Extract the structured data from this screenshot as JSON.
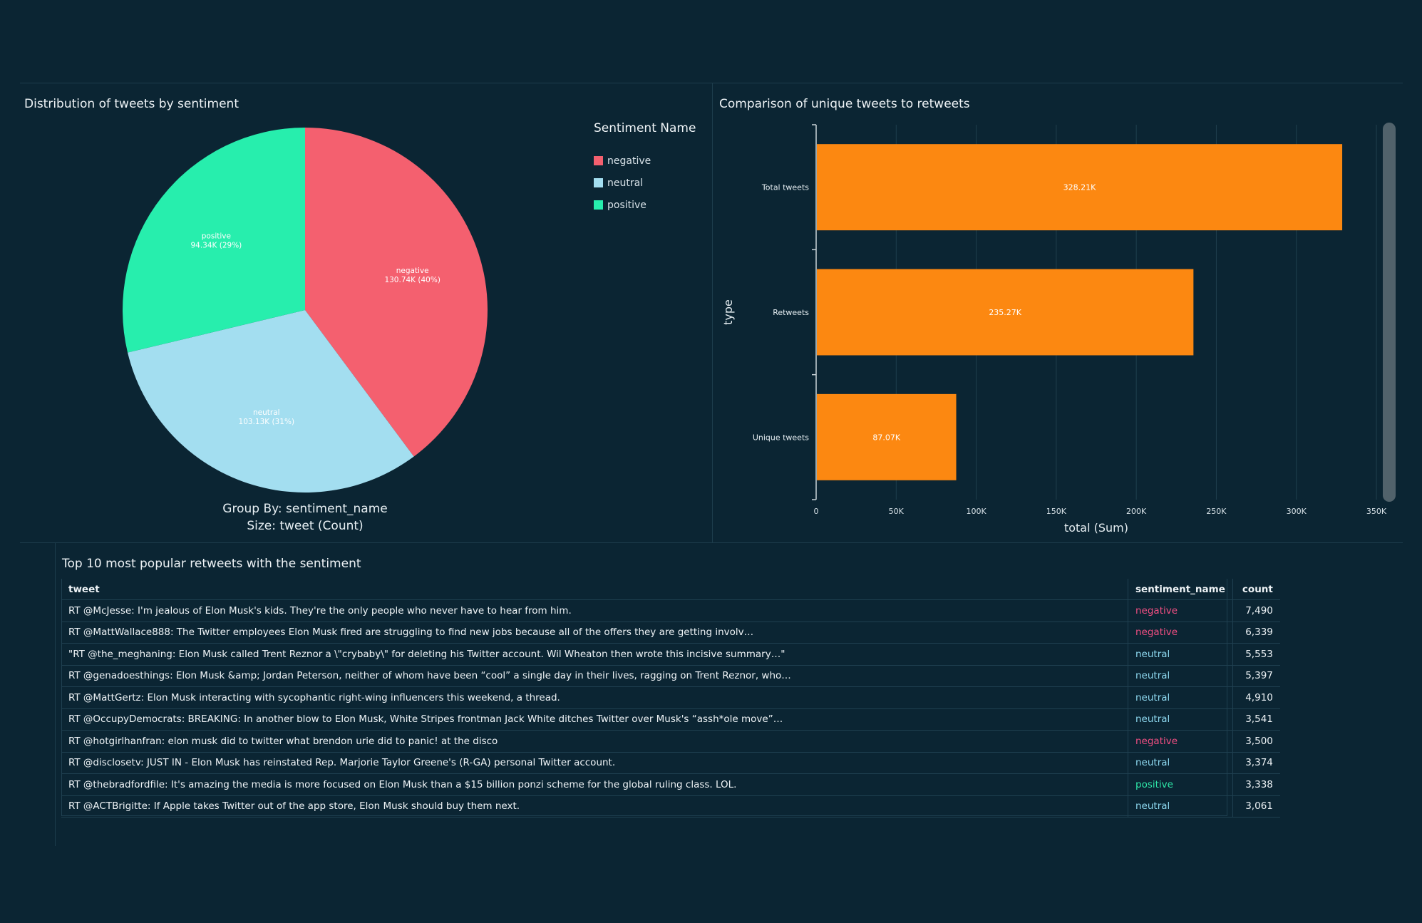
{
  "colors": {
    "negative": "#f4606f",
    "neutral": "#a3def0",
    "positive": "#27eead",
    "bar": "#fc8811",
    "background": "#0b2533"
  },
  "chart_data": [
    {
      "type": "pie",
      "title": "Distribution of tweets by sentiment",
      "legend_title": "Sentiment Name",
      "legend_position": "right",
      "slices": [
        {
          "label": "negative",
          "value_label": "130.74K (40%)",
          "value": 130740,
          "percent": 40
        },
        {
          "label": "neutral",
          "value_label": "103.13K (31%)",
          "value": 103130,
          "percent": 31
        },
        {
          "label": "positive",
          "value_label": "94.34K (29%)",
          "value": 94340,
          "percent": 29
        }
      ],
      "caption_group": "Group By: sentiment_name",
      "caption_size": "Size: tweet (Count)"
    },
    {
      "type": "bar",
      "orientation": "horizontal",
      "title": "Comparison of unique tweets to retweets",
      "categories": [
        "Total tweets",
        "Retweets",
        "Unique tweets"
      ],
      "values": [
        328210,
        235270,
        87070
      ],
      "value_labels": [
        "328.21K",
        "235.27K",
        "87.07K"
      ],
      "xlabel": "total (Sum)",
      "ylabel": "type",
      "xlim": [
        0,
        350000
      ],
      "xticks": [
        0,
        50000,
        100000,
        150000,
        200000,
        250000,
        300000,
        350000
      ],
      "xtick_labels": [
        "0",
        "50K",
        "100K",
        "150K",
        "200K",
        "250K",
        "300K",
        "350K"
      ],
      "grid": true
    },
    {
      "type": "table",
      "title": "Top 10 most popular retweets with the sentiment",
      "columns": [
        "tweet",
        "sentiment_name",
        "count"
      ],
      "rows": [
        {
          "tweet": "RT @McJesse: I'm jealous of Elon Musk's kids. They're the only people who never have to hear from him.",
          "sentiment": "negative",
          "count": "7,490"
        },
        {
          "tweet": "RT @MattWallace888: The Twitter employees Elon Musk fired are struggling to find new jobs because all of the offers they are getting involv…",
          "sentiment": "negative",
          "count": "6,339"
        },
        {
          "tweet": "\"RT @the_meghaning: Elon Musk called Trent Reznor a \\\"crybaby\\\" for deleting his Twitter account. Wil Wheaton then wrote this incisive summary…\"",
          "sentiment": "neutral",
          "count": "5,553"
        },
        {
          "tweet": "RT @genadoesthings: Elon Musk &amp; Jordan Peterson, neither of whom have been “cool” a single day in their lives, ragging on Trent Reznor, who…",
          "sentiment": "neutral",
          "count": "5,397"
        },
        {
          "tweet": "RT @MattGertz: Elon Musk interacting with sycophantic right-wing influencers this weekend, a thread.",
          "sentiment": "neutral",
          "count": "4,910"
        },
        {
          "tweet": "RT @OccupyDemocrats: BREAKING: In another blow to Elon Musk, White Stripes frontman Jack White ditches Twitter over Musk's “assh*ole move”…",
          "sentiment": "neutral",
          "count": "3,541"
        },
        {
          "tweet": "RT @hotgirlhanfran: elon musk did to twitter what brendon urie did to panic! at the disco",
          "sentiment": "negative",
          "count": "3,500"
        },
        {
          "tweet": "RT @disclosetv: JUST IN - Elon Musk has reinstated Rep. Marjorie Taylor Greene's (R-GA) personal Twitter account.",
          "sentiment": "neutral",
          "count": "3,374"
        },
        {
          "tweet": "RT @thebradfordfile: It's amazing the media is more focused on Elon Musk than a $15 billion ponzi scheme for the global ruling class. LOL.",
          "sentiment": "positive",
          "count": "3,338"
        },
        {
          "tweet": "RT @ACTBrigitte: If Apple takes Twitter out of the app store, Elon Musk should buy them next.",
          "sentiment": "neutral",
          "count": "3,061"
        }
      ]
    }
  ]
}
